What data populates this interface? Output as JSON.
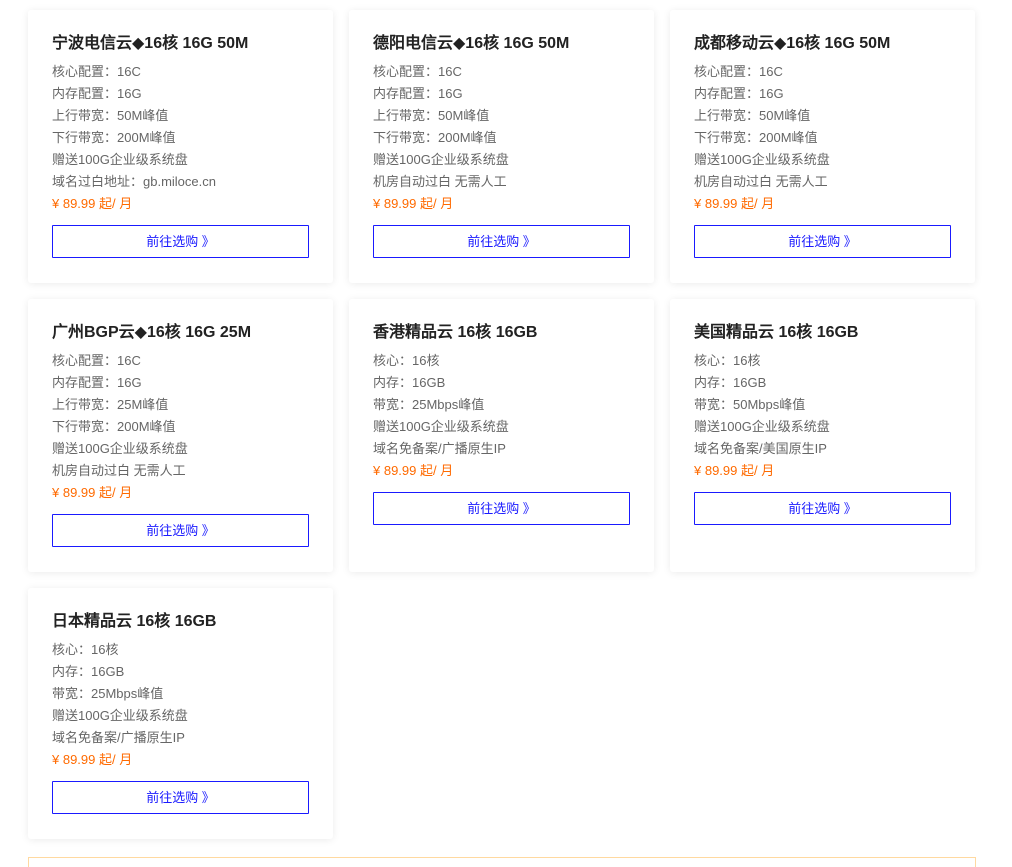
{
  "button_label": "前往选购 》",
  "colors": {
    "price": "#ff6a00",
    "button": "#1a1aff"
  },
  "products": [
    {
      "title": "宁波电信云◆16核 16G 50M",
      "specs": [
        "核心配置：16C",
        "内存配置：16G",
        "上行带宽：50M峰值",
        "下行带宽：200M峰值",
        "赠送100G企业级系统盘",
        "域名过白地址：gb.miloce.cn"
      ],
      "price": "¥ 89.99 起/ 月"
    },
    {
      "title": "德阳电信云◆16核 16G 50M",
      "specs": [
        "核心配置：16C",
        "内存配置：16G",
        "上行带宽：50M峰值",
        "下行带宽：200M峰值",
        "赠送100G企业级系统盘",
        "机房自动过白 无需人工"
      ],
      "price": "¥ 89.99 起/ 月"
    },
    {
      "title": "成都移动云◆16核 16G 50M",
      "specs": [
        "核心配置：16C",
        "内存配置：16G",
        "上行带宽：50M峰值",
        "下行带宽：200M峰值",
        "赠送100G企业级系统盘",
        "机房自动过白 无需人工"
      ],
      "price": "¥ 89.99 起/ 月"
    },
    {
      "title": "广州BGP云◆16核 16G 25M",
      "specs": [
        "核心配置：16C",
        "内存配置：16G",
        "上行带宽：25M峰值",
        "下行带宽：200M峰值",
        "赠送100G企业级系统盘",
        "机房自动过白 无需人工"
      ],
      "price": "¥ 89.99 起/ 月"
    },
    {
      "title": "香港精品云 16核 16GB",
      "specs": [
        "核心：16核",
        "内存：16GB",
        "带宽：25Mbps峰值",
        "赠送100G企业级系统盘",
        "域名免备案/广播原生IP"
      ],
      "price": "¥ 89.99 起/ 月"
    },
    {
      "title": "美国精品云 16核 16GB",
      "specs": [
        "核心：16核",
        "内存：16GB",
        "带宽：50Mbps峰值",
        "赠送100G企业级系统盘",
        "域名免备案/美国原生IP"
      ],
      "price": "¥ 89.99 起/ 月"
    },
    {
      "title": "日本精品云 16核 16GB",
      "specs": [
        "核心：16核",
        "内存：16GB",
        "带宽：25Mbps峰值",
        "赠送100G企业级系统盘",
        "域名免备案/广播原生IP"
      ],
      "price": "¥ 89.99 起/ 月"
    }
  ]
}
